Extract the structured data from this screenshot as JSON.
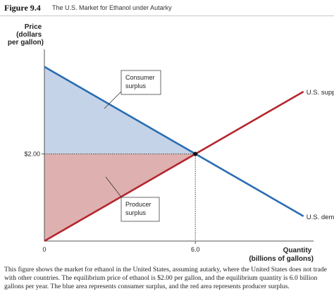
{
  "figure": {
    "number": "Figure 9.4",
    "title": "The U.S. Market for Ethanol under Autarky"
  },
  "caption": "This figure shows the market for ethanol in the United States, assuming autarky, where the United States does not trade with other countries. The equilibrium price of ethanol is $2.00 per gallon, and the equilibrium quantity is 6.0 billion gallons per year. The blue area represents consumer surplus, and the red area represents producer surplus.",
  "chart_data": {
    "type": "line",
    "ylabel": [
      "Price",
      "(dollars",
      "per gallon)"
    ],
    "xlabel": [
      "Quantity",
      "(billions of gallons)"
    ],
    "origin_label": "0",
    "x_ticks": [
      {
        "value": 6.0,
        "label": "6.0"
      }
    ],
    "y_ticks": [
      {
        "value": 2.0,
        "label": "$2.00"
      }
    ],
    "xlim": [
      0,
      10.7
    ],
    "ylim": [
      0,
      4.4
    ],
    "series": [
      {
        "name": "U.S. supply",
        "color": "#b5262e",
        "points": [
          [
            0,
            0
          ],
          [
            10.3,
            3.43
          ]
        ]
      },
      {
        "name": "U.S. demand",
        "color": "#2a6db3",
        "points": [
          [
            0,
            4.0
          ],
          [
            10.3,
            0.57
          ]
        ]
      }
    ],
    "equilibrium": {
      "x": 6.0,
      "y": 2.0
    },
    "areas": [
      {
        "label": [
          "Consumer",
          "surplus"
        ],
        "color": "#c5d3e8",
        "polygon": [
          [
            0,
            2.0
          ],
          [
            0,
            4.0
          ],
          [
            6.0,
            2.0
          ]
        ]
      },
      {
        "label": [
          "Producer",
          "surplus"
        ],
        "color": "#dfb0b0",
        "polygon": [
          [
            0,
            0
          ],
          [
            0,
            2.0
          ],
          [
            6.0,
            2.0
          ]
        ]
      }
    ],
    "grid": false,
    "legend": "inline labels at line ends"
  }
}
